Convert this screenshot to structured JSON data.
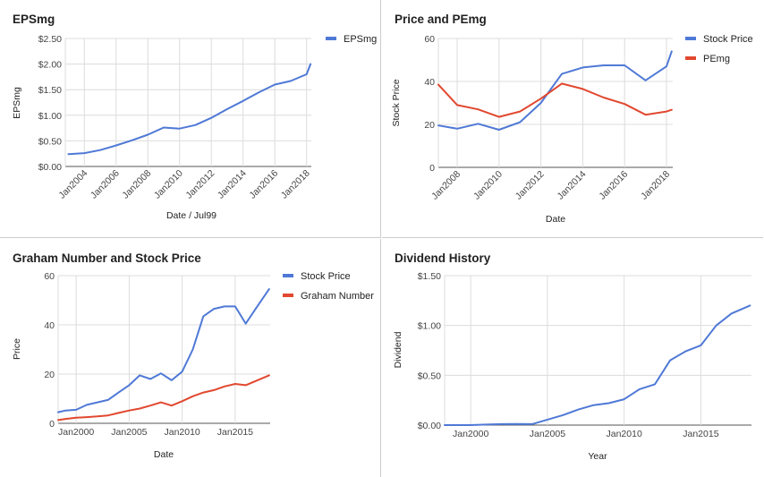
{
  "colors": {
    "blue": "#4f79d6",
    "red": "#e1482f",
    "grid": "#dcdcdc",
    "axis": "#555555",
    "text": "#444444"
  },
  "chart_data": [
    {
      "type": "line",
      "title": "EPSmg",
      "xlabel": "Date / Jul99",
      "ylabel": "EPSmg",
      "xlim": [
        2002.8,
        2018.3
      ],
      "ylim": [
        0,
        2.5
      ],
      "yticks": [
        0,
        0.5,
        1,
        1.5,
        2,
        2.5
      ],
      "ytick_labels": [
        "$0.00",
        "$0.50",
        "$1.00",
        "$1.50",
        "$2.00",
        "$2.50"
      ],
      "xticks": [
        2004,
        2006,
        2008,
        2010,
        2012,
        2014,
        2016,
        2018
      ],
      "xtick_labels": [
        "Jan2004",
        "Jan2006",
        "Jan2008",
        "Jan2010",
        "Jan2012",
        "Jan2014",
        "Jan2016",
        "Jan2018"
      ],
      "x_label_rotate": true,
      "grid": true,
      "legend": "top-right",
      "series": [
        {
          "name": "EPSmg",
          "color": "#4f79d6",
          "points": [
            [
              2003,
              0.24
            ],
            [
              2004,
              0.26
            ],
            [
              2005,
              0.32
            ],
            [
              2006,
              0.41
            ],
            [
              2007,
              0.51
            ],
            [
              2008,
              0.62
            ],
            [
              2009,
              0.76
            ],
            [
              2010,
              0.74
            ],
            [
              2011,
              0.81
            ],
            [
              2012,
              0.95
            ],
            [
              2013,
              1.12
            ],
            [
              2014,
              1.28
            ],
            [
              2015,
              1.45
            ],
            [
              2016,
              1.6
            ],
            [
              2017,
              1.67
            ],
            [
              2018,
              1.8
            ],
            [
              2018.25,
              2.0
            ]
          ]
        }
      ]
    },
    {
      "type": "line",
      "title": "Price and PEmg",
      "xlabel": "Date",
      "ylabel": "Stock Price",
      "xlim": [
        2007.1,
        2018.3
      ],
      "ylim": [
        0,
        60
      ],
      "yticks": [
        0,
        20,
        40,
        60
      ],
      "ytick_labels": [
        "0",
        "20",
        "40",
        "60"
      ],
      "xticks": [
        2008,
        2010,
        2012,
        2014,
        2016,
        2018
      ],
      "xtick_labels": [
        "Jan2008",
        "Jan2010",
        "Jan2012",
        "Jan2014",
        "Jan2016",
        "Jan2018"
      ],
      "x_label_rotate": true,
      "grid": true,
      "legend": "top-right",
      "series": [
        {
          "name": "Stock Price",
          "color": "#4f79d6",
          "points": [
            [
              2007.1,
              19.5
            ],
            [
              2008,
              18
            ],
            [
              2009,
              20.3
            ],
            [
              2010,
              17.5
            ],
            [
              2011,
              21
            ],
            [
              2012,
              30
            ],
            [
              2013,
              43.5
            ],
            [
              2014,
              46.5
            ],
            [
              2015,
              47.5
            ],
            [
              2016,
              47.5
            ],
            [
              2017,
              40.5
            ],
            [
              2018,
              47
            ],
            [
              2018.25,
              54
            ]
          ]
        },
        {
          "name": "PEmg",
          "color": "#e1482f",
          "points": [
            [
              2007.1,
              38.5
            ],
            [
              2008,
              29
            ],
            [
              2009,
              27
            ],
            [
              2010,
              23.5
            ],
            [
              2011,
              26
            ],
            [
              2012,
              32
            ],
            [
              2013,
              39
            ],
            [
              2014,
              36.5
            ],
            [
              2015,
              32.5
            ],
            [
              2016,
              29.5
            ],
            [
              2017,
              24.5
            ],
            [
              2018,
              26
            ],
            [
              2018.25,
              26.8
            ]
          ]
        }
      ]
    },
    {
      "type": "line",
      "title": "Graham Number and Stock Price",
      "xlabel": "Date",
      "ylabel": "Price",
      "xlim": [
        1998.3,
        2018.3
      ],
      "ylim": [
        0,
        60
      ],
      "yticks": [
        0,
        20,
        40,
        60
      ],
      "ytick_labels": [
        "0",
        "20",
        "40",
        "60"
      ],
      "xticks": [
        2000,
        2005,
        2010,
        2015
      ],
      "xtick_labels": [
        "Jan2000",
        "Jan2005",
        "Jan2010",
        "Jan2015"
      ],
      "x_label_rotate": false,
      "grid": true,
      "legend": "top-right",
      "series": [
        {
          "name": "Stock Price",
          "color": "#4f79d6",
          "points": [
            [
              1998.3,
              4.5
            ],
            [
              1999,
              5.2
            ],
            [
              2000,
              5.5
            ],
            [
              2001,
              7.5
            ],
            [
              2002,
              8.5
            ],
            [
              2003,
              9.5
            ],
            [
              2004,
              12.5
            ],
            [
              2005,
              15.5
            ],
            [
              2006,
              19.5
            ],
            [
              2007,
              18
            ],
            [
              2008,
              20.3
            ],
            [
              2009,
              17.5
            ],
            [
              2010,
              21
            ],
            [
              2011,
              30
            ],
            [
              2012,
              43.5
            ],
            [
              2013,
              46.5
            ],
            [
              2014,
              47.5
            ],
            [
              2015,
              47.5
            ],
            [
              2016,
              40.5
            ],
            [
              2017,
              47
            ],
            [
              2018.2,
              54.5
            ]
          ]
        },
        {
          "name": "Graham Number",
          "color": "#e1482f",
          "points": [
            [
              1998.3,
              1.3
            ],
            [
              1999,
              1.8
            ],
            [
              2000,
              2.3
            ],
            [
              2001,
              2.5
            ],
            [
              2002,
              2.8
            ],
            [
              2003,
              3.2
            ],
            [
              2004,
              4.2
            ],
            [
              2005,
              5.2
            ],
            [
              2006,
              6
            ],
            [
              2007,
              7.2
            ],
            [
              2008,
              8.5
            ],
            [
              2009,
              7.2
            ],
            [
              2010,
              9
            ],
            [
              2011,
              11
            ],
            [
              2012,
              12.5
            ],
            [
              2013,
              13.5
            ],
            [
              2014,
              15
            ],
            [
              2015,
              16
            ],
            [
              2016,
              15.5
            ],
            [
              2017,
              17.3
            ],
            [
              2018.2,
              19.5
            ]
          ]
        }
      ]
    },
    {
      "type": "line",
      "title": "Dividend History",
      "xlabel": "Year",
      "ylabel": "Dividend",
      "xlim": [
        1998.3,
        2018.3
      ],
      "ylim": [
        0,
        1.5
      ],
      "yticks": [
        0,
        0.5,
        1,
        1.5
      ],
      "ytick_labels": [
        "$0.00",
        "$0.50",
        "$1.00",
        "$1.50"
      ],
      "xticks": [
        2000,
        2005,
        2010,
        2015
      ],
      "xtick_labels": [
        "Jan2000",
        "Jan2005",
        "Jan2010",
        "Jan2015"
      ],
      "x_label_rotate": false,
      "grid": true,
      "legend": "none",
      "series": [
        {
          "name": "",
          "color": "#4f79d6",
          "points": [
            [
              1998.3,
              0
            ],
            [
              2000,
              0
            ],
            [
              2001,
              0.005
            ],
            [
              2002,
              0.01
            ],
            [
              2003,
              0.012
            ],
            [
              2004,
              0.01
            ],
            [
              2005,
              0.055
            ],
            [
              2006,
              0.1
            ],
            [
              2007,
              0.155
            ],
            [
              2008,
              0.2
            ],
            [
              2009,
              0.22
            ],
            [
              2010,
              0.26
            ],
            [
              2011,
              0.36
            ],
            [
              2012,
              0.41
            ],
            [
              2013,
              0.65
            ],
            [
              2014,
              0.74
            ],
            [
              2015,
              0.8
            ],
            [
              2016,
              1.0
            ],
            [
              2017,
              1.12
            ],
            [
              2018.2,
              1.2
            ]
          ]
        }
      ]
    }
  ]
}
